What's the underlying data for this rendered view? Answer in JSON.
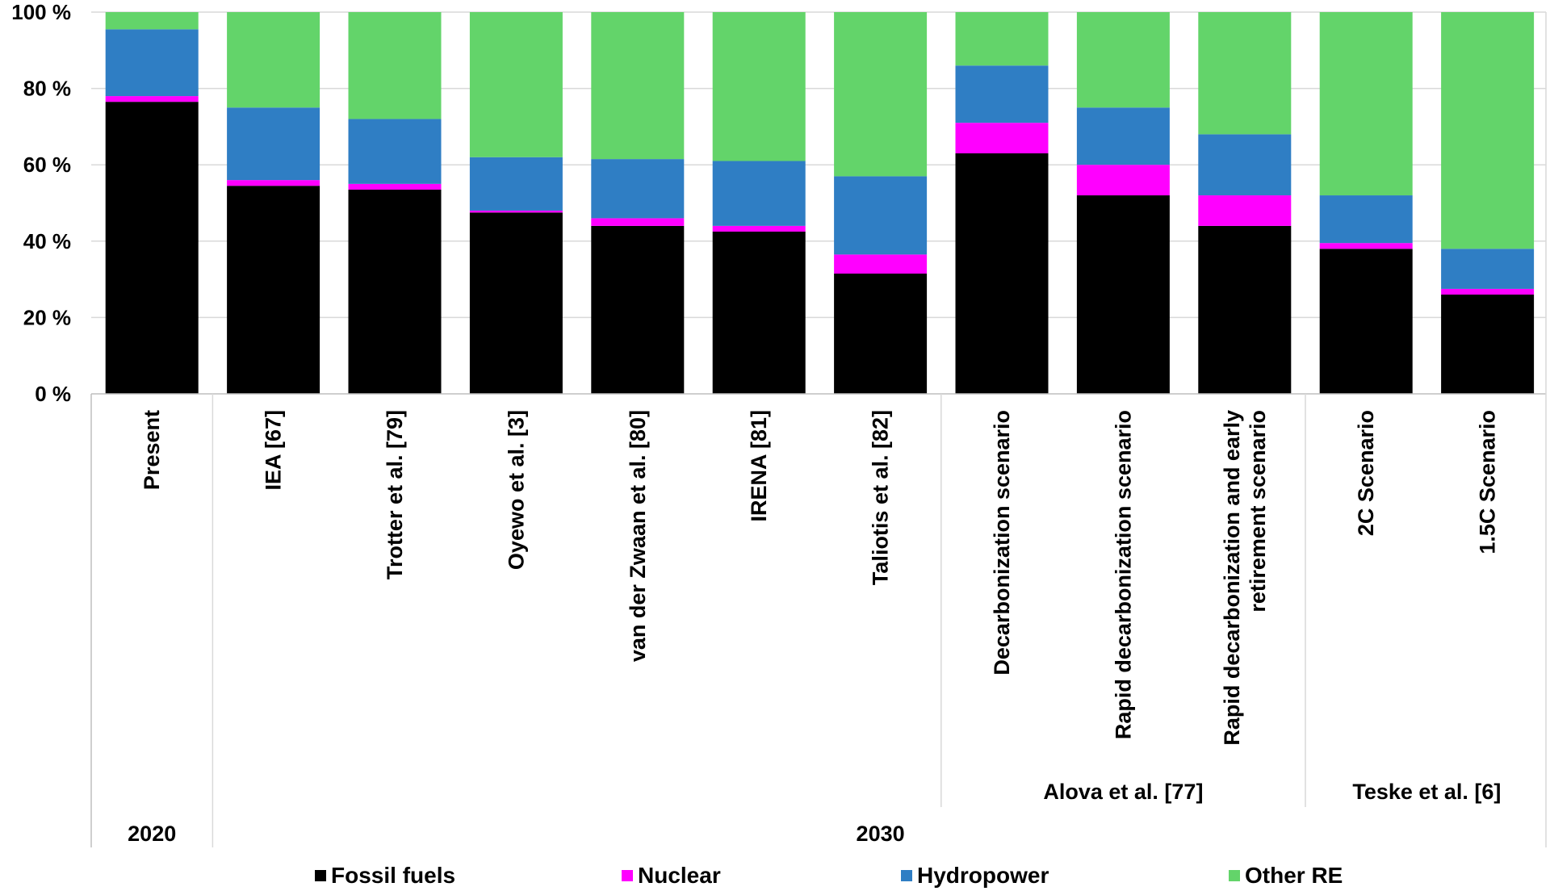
{
  "chart_data": {
    "type": "bar",
    "stacked": true,
    "ylim": [
      0,
      100
    ],
    "y_ticks": [
      "0 %",
      "20 %",
      "40 %",
      "60 %",
      "80 %",
      "100 %"
    ],
    "y_tick_values": [
      0,
      20,
      40,
      60,
      80,
      100
    ],
    "grid": true,
    "categories": [
      [
        "Present"
      ],
      [
        "IEA [67]"
      ],
      [
        "Trotter et al. [79]"
      ],
      [
        "Oyewo et al. [3]"
      ],
      [
        "van der Zwaan et al. [80]"
      ],
      [
        "IRENA [81]"
      ],
      [
        "Taliotis et al. [82]"
      ],
      [
        "Decarbonization scenario"
      ],
      [
        "Rapid decarbonization scenario"
      ],
      [
        "Rapid decarbonization and early",
        "retirement scenario"
      ],
      [
        "2C Scenario"
      ],
      [
        "1.5C Scenario"
      ]
    ],
    "series": [
      {
        "name": "Fossil fuels",
        "color": "#000000",
        "values": [
          76.5,
          54.5,
          53.5,
          47.5,
          44,
          42.5,
          31.5,
          63,
          52,
          44,
          38,
          26
        ]
      },
      {
        "name": "Nuclear",
        "color": "#ff00ff",
        "values": [
          1.5,
          1.5,
          1.5,
          0.5,
          2,
          1.5,
          5,
          8,
          8,
          8,
          1.5,
          1.5
        ]
      },
      {
        "name": "Hydropower",
        "color": "#2f7ec4",
        "values": [
          17.5,
          19,
          17,
          14,
          15.5,
          17,
          20.5,
          15,
          15,
          16,
          12.5,
          10.5
        ]
      },
      {
        "name": "Other RE",
        "color": "#63d46a",
        "values": [
          4.5,
          25,
          28,
          38,
          38.5,
          39,
          43,
          14,
          25,
          32,
          48,
          62
        ]
      }
    ],
    "groups": [
      {
        "label": "Alova et al. [77]",
        "from": 7,
        "to": 9
      },
      {
        "label": "Teske et al. [6]",
        "from": 10,
        "to": 11
      }
    ],
    "years": [
      {
        "label": "2020",
        "from": 0,
        "to": 0
      },
      {
        "label": "2030",
        "from": 1,
        "to": 11
      }
    ],
    "legend": "bottom"
  }
}
